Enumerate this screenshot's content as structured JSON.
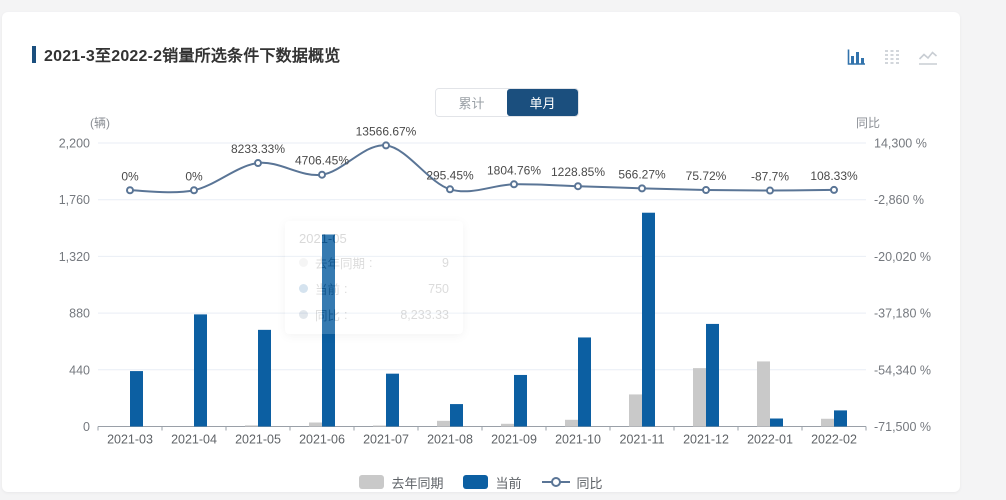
{
  "header": {
    "title": "2021-3至2022-2销量所选条件下数据概览",
    "accent_color": "#1b4f7e"
  },
  "view_switcher": {
    "icons": [
      {
        "name": "bar-chart-icon",
        "active": true,
        "color": "#3273ac"
      },
      {
        "name": "data-view-icon",
        "active": false,
        "color": "#d2d6db"
      },
      {
        "name": "line-chart-icon",
        "active": false,
        "color": "#c8cdd3"
      }
    ]
  },
  "mode_toggle": {
    "options": [
      {
        "label": "累计",
        "active": false
      },
      {
        "label": "单月",
        "active": true
      }
    ],
    "active_color": "#1b4f7e"
  },
  "tooltip_ghost": {
    "title": "2021-05",
    "separator": ":",
    "rows": [
      {
        "label": "去年同期",
        "value": "9",
        "color": "#c9c9c9"
      },
      {
        "label": "当前",
        "value": "750",
        "color": "#0c5fa2"
      },
      {
        "label": "同比",
        "value": "8,233.33",
        "color": "#5a7596"
      }
    ]
  },
  "legend": {
    "items": [
      {
        "label": "去年同期",
        "type": "bar",
        "color": "#c9c9c9"
      },
      {
        "label": "当前",
        "type": "bar",
        "color": "#0c5fa2"
      },
      {
        "label": "同比",
        "type": "line",
        "color": "#5a7596"
      }
    ]
  },
  "chart_data": {
    "type": "bar+line",
    "title": "2021-3至2022-2销量所选条件下数据概览",
    "legend_position": "bottom",
    "grid": true,
    "categories": [
      "2021-03",
      "2021-04",
      "2021-05",
      "2021-06",
      "2021-07",
      "2021-08",
      "2021-09",
      "2021-10",
      "2021-11",
      "2021-12",
      "2022-01",
      "2022-02"
    ],
    "series": [
      {
        "name": "去年同期",
        "type": "bar",
        "axis": "left",
        "color": "#c9c9c9",
        "values": [
          0,
          0,
          9,
          31,
          3,
          44,
          21,
          52,
          249,
          453,
          505,
          60
        ]
      },
      {
        "name": "当前",
        "type": "bar",
        "axis": "left",
        "color": "#0c5fa2",
        "values": [
          430,
          870,
          750,
          1490,
          410,
          174,
          400,
          691,
          1659,
          796,
          62,
          125
        ]
      },
      {
        "name": "同比",
        "type": "line",
        "axis": "right",
        "color": "#5a7596",
        "marker": "empty-circle",
        "values": [
          0,
          0,
          8233.33,
          4706.45,
          13566.67,
          295.45,
          1804.76,
          1228.85,
          566.27,
          75.72,
          -87.7,
          108.33
        ],
        "labels": [
          "0%",
          "0%",
          "8233.33%",
          "4706.45%",
          "13566.67%",
          "295.45%",
          "1804.76%",
          "1228.85%",
          "566.27%",
          "75.72%",
          "-87.7%",
          "108.33%"
        ]
      }
    ],
    "left_axis": {
      "name": "(辆)",
      "max": 2200,
      "min": 0,
      "ticks": [
        0,
        440,
        880,
        1320,
        1760,
        2200
      ],
      "tick_labels": [
        "0",
        "440",
        "880",
        "1,320",
        "1,760",
        "2,200"
      ]
    },
    "right_axis": {
      "name": "同比",
      "max": 14300,
      "min": -71500,
      "ticks": [
        -71500,
        -54340,
        -37180,
        -20020,
        -2860,
        14300
      ],
      "tick_labels": [
        "-71,500 %",
        "-54,340 %",
        "-37,180 %",
        "-20,020 %",
        "-2,860 %",
        "14,300 %"
      ]
    }
  }
}
